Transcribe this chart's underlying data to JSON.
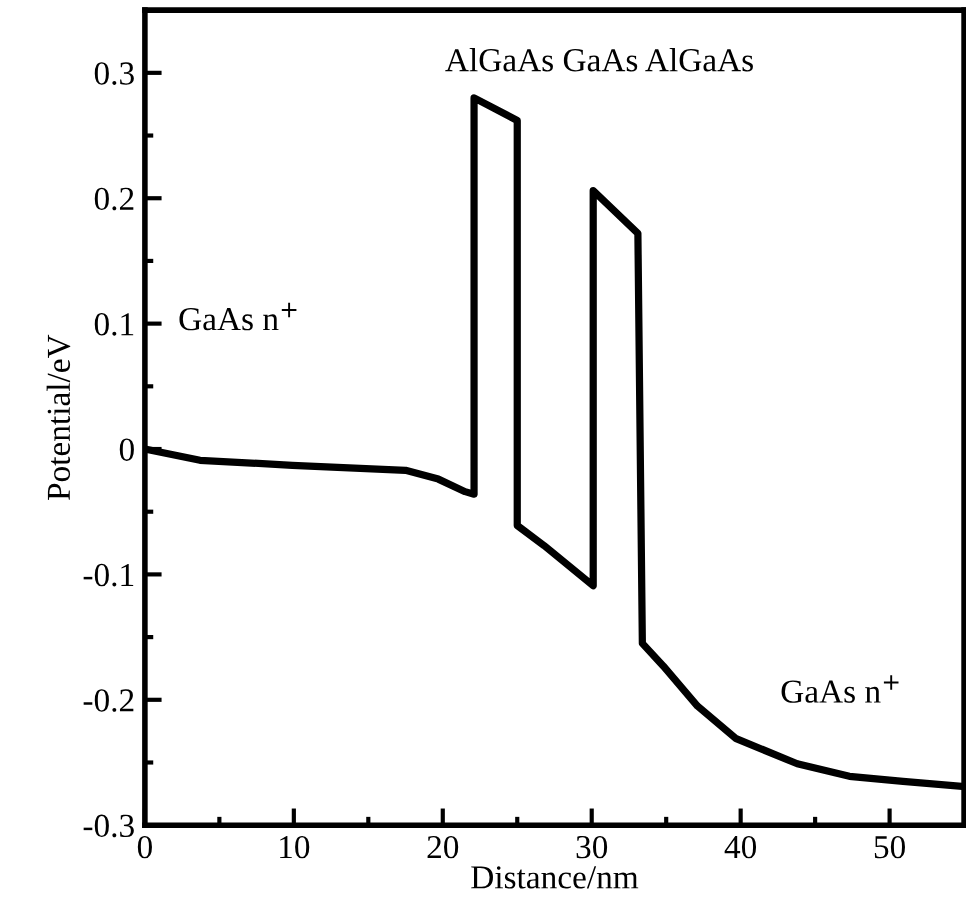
{
  "chart_data": {
    "type": "line",
    "xlabel": "Distance/nm",
    "ylabel": "Potential/eV",
    "x": [
      0,
      3.7,
      9.9,
      17.5,
      19.7,
      21.5,
      22.1,
      22.1,
      25.0,
      25.0,
      26.8,
      30.1,
      30.1,
      33.1,
      33.4,
      34.8,
      37.1,
      39.7,
      43.8,
      47.3,
      50.9,
      54.9
    ],
    "series": [
      {
        "color": "#000000",
        "values": [
          0,
          -0.009,
          -0.013,
          -0.017,
          -0.024,
          -0.034,
          -0.036,
          0.28,
          0.262,
          -0.061,
          -0.077,
          -0.109,
          0.206,
          0.172,
          -0.155,
          -0.173,
          -0.205,
          -0.231,
          -0.251,
          -0.261,
          -0.265,
          -0.269
        ]
      }
    ],
    "xlim": [
      0,
      55
    ],
    "xticks": [
      0,
      10,
      20,
      30,
      40,
      50
    ],
    "ylim": [
      -0.3,
      0.35
    ],
    "yticks": [
      -0.3,
      -0.2,
      -0.1,
      0,
      0.1,
      0.2,
      0.3
    ],
    "grid": false,
    "legend": false,
    "marker": "none",
    "line_style": "solid",
    "annotations": [
      "GaAs n$^{+}$",
      "AlGaAs GaAs AlGaAs",
      "GaAs n$^{+}$"
    ]
  }
}
